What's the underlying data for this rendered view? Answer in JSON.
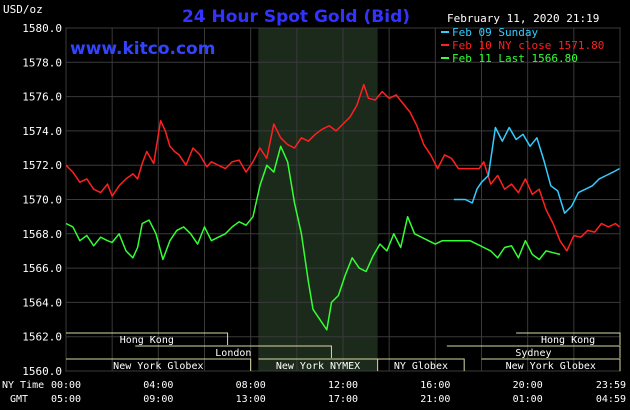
{
  "header": {
    "unit": "USD/oz",
    "title": "24 Hour Spot Gold (Bid)",
    "datetime": "February 11, 2020 21:19",
    "website": "www.kitco.com"
  },
  "legend": [
    {
      "label": "Feb 09 Sunday",
      "color": "#33ccff"
    },
    {
      "label": "Feb 10 NY close 1571.80",
      "color": "#ff2020"
    },
    {
      "label": "Feb 11 Last 1566.80",
      "color": "#33ff33"
    }
  ],
  "markets": [
    {
      "name": "Hong Kong",
      "start": "00:00",
      "end": "07:00",
      "row": 1
    },
    {
      "name": "Hong Kong",
      "start": "19:30",
      "end": "24:00",
      "row": 1
    },
    {
      "name": "London",
      "start": "03:00",
      "end": "11:30",
      "row": 2
    },
    {
      "name": "Sydney",
      "start": "16:30",
      "end": "24:00",
      "row": 2
    },
    {
      "name": "New York Globex",
      "start": "00:00",
      "end": "08:00",
      "row": 3
    },
    {
      "name": "New York NYMEX",
      "start": "08:20",
      "end": "13:30",
      "row": 3
    },
    {
      "name": "NY Globex",
      "start": "13:30",
      "end": "17:15",
      "row": 3
    },
    {
      "name": "New York Globex",
      "start": "18:00",
      "end": "24:00",
      "row": 3
    }
  ],
  "axis": {
    "ny_label": "NY Time",
    "gmt_label": "GMT",
    "ny_ticks": [
      "00:00",
      "04:00",
      "08:00",
      "12:00",
      "16:00",
      "20:00",
      "23:59"
    ],
    "gmt_ticks": [
      "05:00",
      "09:00",
      "13:00",
      "17:00",
      "21:00",
      "01:00",
      "04:59"
    ]
  },
  "chart_data": {
    "type": "line",
    "title": "24 Hour Spot Gold (Bid)",
    "ylabel": "USD/oz",
    "ylim": [
      1560,
      1580
    ],
    "y_ticks": [
      1560,
      1562,
      1564,
      1566,
      1568,
      1570,
      1572,
      1574,
      1576,
      1578,
      1580
    ],
    "x_unit": "NY time (hours)",
    "xlim": [
      0,
      24
    ],
    "grid": true,
    "legend_position": "top-right",
    "shaded_session": {
      "start": 8.33,
      "end": 13.5
    },
    "series": [
      {
        "name": "Feb 10 NY close 1571.80",
        "color": "#ff2020",
        "x": [
          0,
          0.3,
          0.6,
          0.9,
          1.2,
          1.5,
          1.8,
          2.0,
          2.3,
          2.6,
          2.9,
          3.1,
          3.3,
          3.5,
          3.8,
          4.1,
          4.3,
          4.5,
          4.7,
          4.9,
          5.2,
          5.5,
          5.8,
          6.1,
          6.3,
          6.6,
          6.9,
          7.2,
          7.5,
          7.8,
          8.1,
          8.4,
          8.7,
          9.0,
          9.3,
          9.6,
          9.9,
          10.2,
          10.5,
          10.8,
          11.1,
          11.4,
          11.7,
          12.0,
          12.3,
          12.6,
          12.9,
          13.1,
          13.4,
          13.7,
          14.0,
          14.3,
          14.6,
          14.9,
          15.2,
          15.5,
          15.8,
          16.1,
          16.4,
          16.7,
          17.0,
          17.3,
          17.6,
          17.9,
          18.1,
          18.4,
          18.7,
          19.0,
          19.3,
          19.6,
          19.9,
          20.2,
          20.5,
          20.8,
          21.1,
          21.4,
          21.7,
          22.0,
          22.3,
          22.6,
          22.9,
          23.2,
          23.5,
          23.8,
          23.98
        ],
        "values": [
          1572.0,
          1571.6,
          1571.0,
          1571.2,
          1570.6,
          1570.4,
          1570.9,
          1570.2,
          1570.8,
          1571.2,
          1571.5,
          1571.2,
          1572.1,
          1572.8,
          1572.1,
          1574.6,
          1574.0,
          1573.1,
          1572.8,
          1572.6,
          1572.0,
          1573.0,
          1572.6,
          1571.9,
          1572.2,
          1572.0,
          1571.8,
          1572.2,
          1572.3,
          1571.6,
          1572.2,
          1573.0,
          1572.4,
          1574.4,
          1573.6,
          1573.2,
          1573.0,
          1573.6,
          1573.4,
          1573.8,
          1574.1,
          1574.3,
          1574.0,
          1574.4,
          1574.8,
          1575.5,
          1576.7,
          1575.9,
          1575.8,
          1576.3,
          1575.9,
          1576.1,
          1575.6,
          1575.1,
          1574.3,
          1573.2,
          1572.6,
          1571.8,
          1572.6,
          1572.4,
          1571.8,
          1571.8,
          1571.8,
          1571.8,
          1572.2,
          1570.9,
          1571.4,
          1570.6,
          1570.9,
          1570.4,
          1571.2,
          1570.3,
          1570.6,
          1569.4,
          1568.6,
          1567.6,
          1567.0,
          1567.9,
          1567.8,
          1568.2,
          1568.1,
          1568.6,
          1568.4,
          1568.6,
          1568.4
        ]
      },
      {
        "name": "Feb 11 Last 1566.80",
        "color": "#33ff33",
        "x": [
          0,
          0.3,
          0.6,
          0.9,
          1.2,
          1.5,
          1.8,
          2.0,
          2.3,
          2.6,
          2.9,
          3.1,
          3.3,
          3.6,
          3.9,
          4.2,
          4.5,
          4.8,
          5.1,
          5.4,
          5.7,
          6.0,
          6.3,
          6.6,
          6.9,
          7.2,
          7.5,
          7.8,
          8.1,
          8.4,
          8.7,
          9.0,
          9.3,
          9.6,
          9.9,
          10.2,
          10.5,
          10.7,
          11.0,
          11.3,
          11.5,
          11.8,
          12.1,
          12.4,
          12.7,
          13.0,
          13.3,
          13.6,
          13.9,
          14.2,
          14.5,
          14.8,
          15.1,
          15.4,
          15.7,
          16.0,
          16.3,
          16.6,
          16.9,
          17.2,
          17.5,
          17.8,
          18.1,
          18.4,
          18.7,
          19.0,
          19.3,
          19.6,
          19.9,
          20.2,
          20.5,
          20.8,
          21.1,
          21.4
        ],
        "values": [
          1568.6,
          1568.4,
          1567.6,
          1567.9,
          1567.3,
          1567.8,
          1567.6,
          1567.5,
          1568.0,
          1567.0,
          1566.6,
          1567.2,
          1568.6,
          1568.8,
          1568.0,
          1566.5,
          1567.6,
          1568.2,
          1568.4,
          1568.0,
          1567.4,
          1568.4,
          1567.6,
          1567.8,
          1568.0,
          1568.4,
          1568.7,
          1568.5,
          1569.0,
          1570.8,
          1572.0,
          1571.6,
          1573.1,
          1572.2,
          1569.8,
          1568.0,
          1565.2,
          1563.6,
          1563.0,
          1562.4,
          1564.0,
          1564.4,
          1565.6,
          1566.6,
          1566.0,
          1565.8,
          1566.7,
          1567.4,
          1567.0,
          1568.0,
          1567.2,
          1569.0,
          1568.0,
          1567.8,
          1567.6,
          1567.4,
          1567.6,
          1567.6,
          1567.6,
          1567.6,
          1567.6,
          1567.4,
          1567.2,
          1567.0,
          1566.6,
          1567.2,
          1567.3,
          1566.6,
          1567.6,
          1566.8,
          1566.5,
          1567.0,
          1566.9,
          1566.8
        ]
      },
      {
        "name": "Feb 09 Sunday",
        "color": "#33ccff",
        "x": [
          16.8,
          17.3,
          17.6,
          17.8,
          18.0,
          18.3,
          18.6,
          18.9,
          19.2,
          19.5,
          19.8,
          20.1,
          20.4,
          20.7,
          21.0,
          21.3,
          21.6,
          21.9,
          22.2,
          22.5,
          22.8,
          23.1,
          23.4,
          23.7,
          23.98
        ],
        "values": [
          1570.0,
          1570.0,
          1569.8,
          1570.6,
          1571.0,
          1571.4,
          1574.2,
          1573.4,
          1574.2,
          1573.5,
          1573.8,
          1573.1,
          1573.6,
          1572.3,
          1570.8,
          1570.5,
          1569.2,
          1569.6,
          1570.4,
          1570.6,
          1570.8,
          1571.2,
          1571.4,
          1571.6,
          1571.8
        ]
      }
    ]
  }
}
